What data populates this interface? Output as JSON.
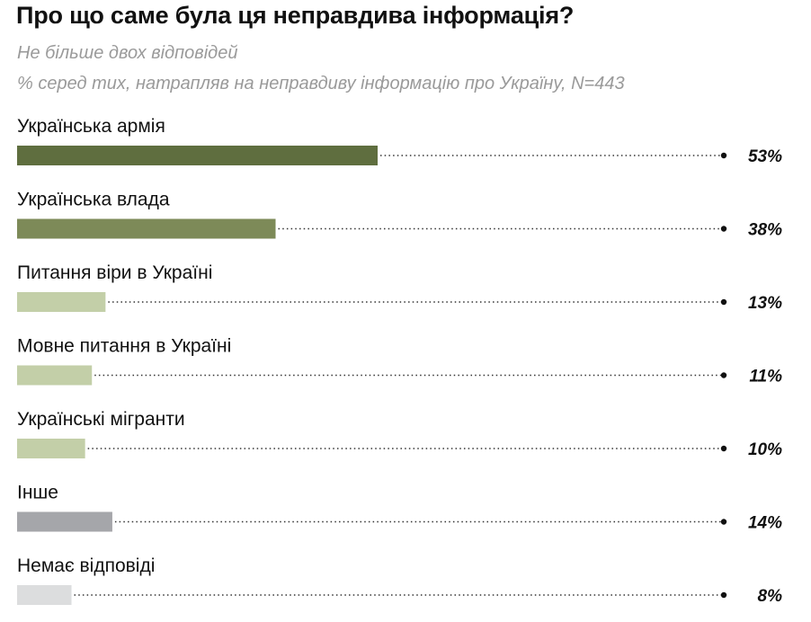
{
  "header": {
    "title": "Про що саме була ця неправдива інформація?",
    "subtitle_1": "Не більше двох відповідей",
    "subtitle_2": "% серед тих, натрапляв на неправдиву інформацію про Україну, N=443"
  },
  "chart_data": {
    "type": "bar",
    "orientation": "horizontal",
    "categories": [
      "Українська армія",
      "Українська влада",
      "Питання віри в Україні",
      "Мовне питання в Україні",
      "Українські мігранти",
      "Інше",
      "Немає відповіді"
    ],
    "values": [
      53,
      38,
      13,
      11,
      10,
      14,
      8
    ],
    "value_labels": [
      "53%",
      "38%",
      "13%",
      "11%",
      "10%",
      "14%",
      "8%"
    ],
    "unit": "%",
    "colors": [
      "#5f6e3f",
      "#7d8a58",
      "#c3cfa8",
      "#c3cfa8",
      "#c3cfa8",
      "#a5a6aa",
      "#dcddde"
    ],
    "xlim": [
      0,
      100
    ],
    "grid": false,
    "legend": "none"
  }
}
